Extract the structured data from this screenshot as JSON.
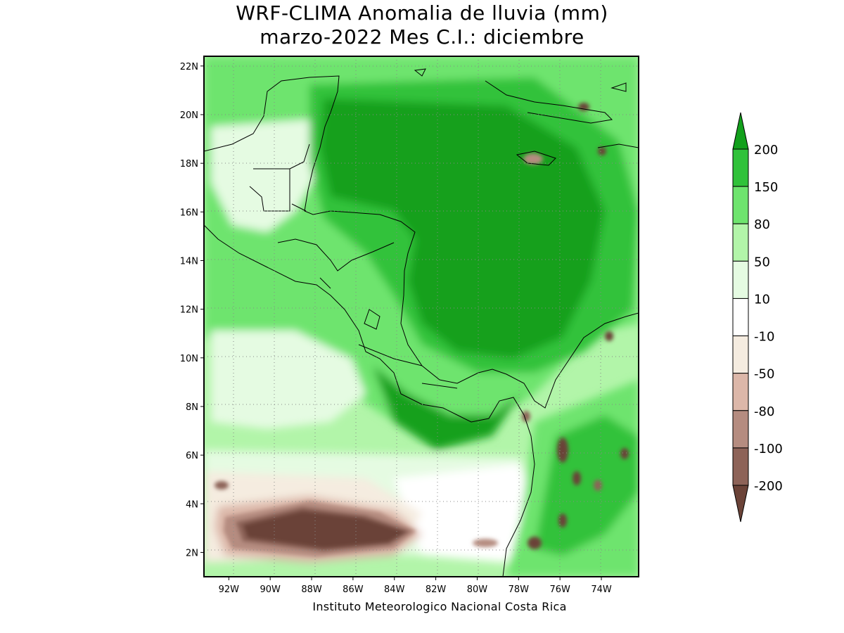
{
  "title": {
    "line1": "WRF-CLIMA Anomalia de lluvia (mm)",
    "line2": "marzo-2022 Mes C.I.: diciembre"
  },
  "credit": "Instituto Meteorologico Nacional Costa Rica",
  "map": {
    "lon_range": [
      -93.2,
      -72.2
    ],
    "lat_range": [
      1.0,
      22.4
    ],
    "gridlines": "dotted",
    "lat_ticks": [
      {
        "value": 22,
        "label": "22N"
      },
      {
        "value": 20,
        "label": "20N"
      },
      {
        "value": 18,
        "label": "18N"
      },
      {
        "value": 16,
        "label": "16N"
      },
      {
        "value": 14,
        "label": "14N"
      },
      {
        "value": 12,
        "label": "12N"
      },
      {
        "value": 10,
        "label": "10N"
      },
      {
        "value": 8,
        "label": "8N"
      },
      {
        "value": 6,
        "label": "6N"
      },
      {
        "value": 4,
        "label": "4N"
      },
      {
        "value": 2,
        "label": "2N"
      }
    ],
    "lon_ticks": [
      {
        "value": -92,
        "label": "92W"
      },
      {
        "value": -90,
        "label": "90W"
      },
      {
        "value": -88,
        "label": "88W"
      },
      {
        "value": -86,
        "label": "86W"
      },
      {
        "value": -84,
        "label": "84W"
      },
      {
        "value": -82,
        "label": "82W"
      },
      {
        "value": -80,
        "label": "80W"
      },
      {
        "value": -78,
        "label": "78W"
      },
      {
        "value": -76,
        "label": "76W"
      },
      {
        "value": -74,
        "label": "74W"
      }
    ],
    "field_regions": [
      {
        "name": "caribbean-max",
        "class": ">200",
        "color": "#12a01c"
      },
      {
        "name": "pacific-central",
        "class": "10 to 50",
        "color": "#e5fbe2"
      },
      {
        "name": "equatorial-deficit",
        "class": "< -200",
        "color": "#6b4338"
      }
    ]
  },
  "legend": {
    "levels": [
      "200",
      "150",
      "80",
      "50",
      "10",
      "-10",
      "-50",
      "-80",
      "-100",
      "-200"
    ],
    "colors": [
      "#12a01c",
      "#30c23a",
      "#6ee46e",
      "#b2f5a9",
      "#e5fbe2",
      "#ffffff",
      "#f5ece0",
      "#dcb7a9",
      "#b58c80",
      "#8d6358",
      "#6b4338"
    ]
  }
}
